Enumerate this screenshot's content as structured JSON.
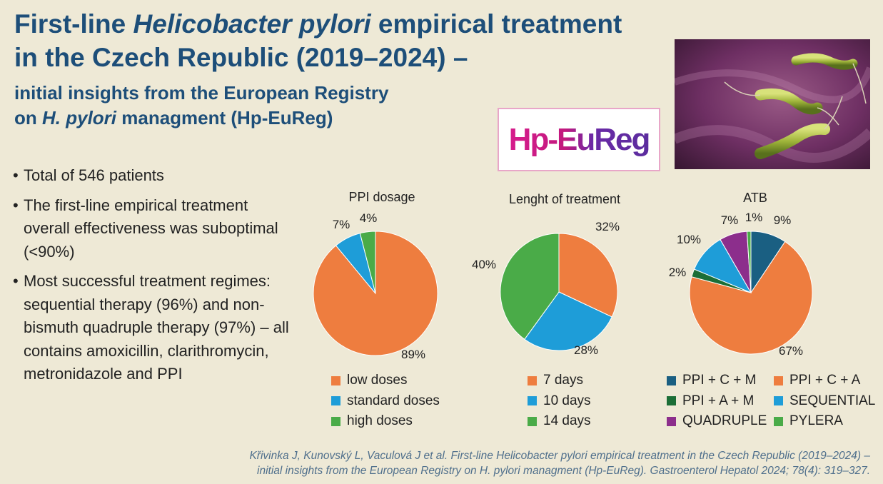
{
  "header": {
    "title_line1_a": "First-line ",
    "title_line1_italic": "Helicobacter pylori",
    "title_line1_b": " empirical treatment",
    "title_line2": "in the Czech Republic (2019–2024) –",
    "subtitle_line1": "initial insights from the European Registry",
    "subtitle_line2_a": "on ",
    "subtitle_line2_italic": "H. pylori",
    "subtitle_line2_b": " managment (Hp-EuReg)"
  },
  "logo": {
    "text": "Hp-EuReg"
  },
  "photo": {
    "icon": "h-pylori-bacteria-illustration"
  },
  "bullets": [
    "Total of 546 patients",
    "The first-line empirical treatment overall effectiveness was suboptimal (<90%)",
    "Most successful treatment regimes: sequential therapy (96%) and non-bismuth quadruple therapy (97%) – all contains amoxicillin, clarithromycin, metronidazole and PPI"
  ],
  "chart_data": [
    {
      "type": "pie",
      "title": "PPI dosage",
      "categories": [
        "low doses",
        "standard doses",
        "high doses"
      ],
      "values": [
        89,
        7,
        4
      ],
      "labels": [
        "89%",
        "7%",
        "4%"
      ],
      "colors": [
        "#ee7d3f",
        "#1e9dd8",
        "#4aab48"
      ]
    },
    {
      "type": "pie",
      "title": "Lenght of treatment",
      "categories": [
        "7 days",
        "10 days",
        "14 days"
      ],
      "values": [
        32,
        28,
        40
      ],
      "labels": [
        "32%",
        "28%",
        "40%"
      ],
      "colors": [
        "#ee7d3f",
        "#1e9dd8",
        "#4aab48"
      ]
    },
    {
      "type": "pie",
      "title": "ATB",
      "categories": [
        "PPI + C + M",
        "PPI + C + A",
        "PPI + A + M",
        "SEQUENTIAL",
        "QUADRUPLE",
        "PYLERA"
      ],
      "values": [
        9,
        67,
        2,
        10,
        7,
        1
      ],
      "labels": [
        "9%",
        "67%",
        "2%",
        "10%",
        "7%",
        "1%"
      ],
      "colors": [
        "#1a5f82",
        "#ee7d3f",
        "#1b6e37",
        "#1e9dd8",
        "#8c2e8c",
        "#4aab48"
      ]
    }
  ],
  "citation": {
    "line1": "Křivinka J, Kunovský L, Vaculová J et al. First-line Helicobacter pylori empirical treatment in the Czech Republic (2019–2024) –",
    "line2": "initial insights from the European Registry on H. pylori managment (Hp-EuReg). Gastroenterol Hepatol 2024; 78(4): 319–327."
  }
}
